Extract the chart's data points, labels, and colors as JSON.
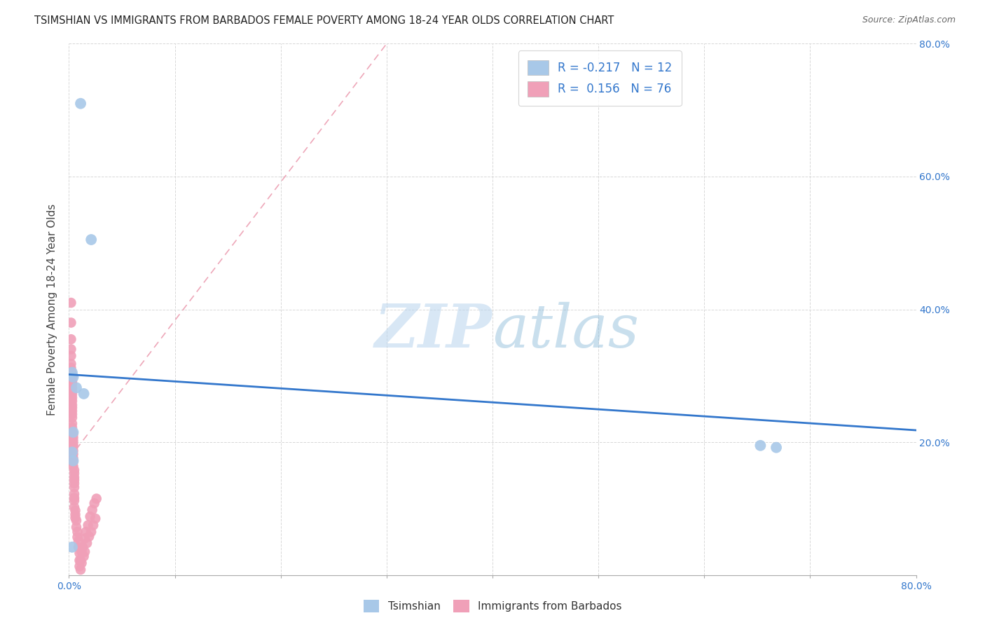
{
  "title": "TSIMSHIAN VS IMMIGRANTS FROM BARBADOS FEMALE POVERTY AMONG 18-24 YEAR OLDS CORRELATION CHART",
  "source": "Source: ZipAtlas.com",
  "ylabel": "Female Poverty Among 18-24 Year Olds",
  "watermark": "ZIPatlas",
  "xlim": [
    0.0,
    0.8
  ],
  "ylim": [
    0.0,
    0.8
  ],
  "x_ticks": [
    0.0,
    0.1,
    0.2,
    0.3,
    0.4,
    0.5,
    0.6,
    0.7,
    0.8
  ],
  "x_tick_labels_show": {
    "0": "0.0%",
    "8": "80.0%"
  },
  "y_ticks_right": [
    0.2,
    0.4,
    0.6,
    0.8
  ],
  "y_tick_labels_right": [
    "20.0%",
    "40.0%",
    "60.0%",
    "80.0%"
  ],
  "tsimshian_color": "#a8c8e8",
  "barbados_color": "#f0a0b8",
  "trend_tsimshian_color": "#3377cc",
  "trend_barbados_color": "#e06080",
  "background_color": "#ffffff",
  "grid_color": "#d8d8d8",
  "tsimshian_R": -0.217,
  "tsimshian_N": 12,
  "barbados_R": 0.156,
  "barbados_N": 76,
  "tsimshian_x": [
    0.011,
    0.021,
    0.003,
    0.004,
    0.007,
    0.014,
    0.004,
    0.003,
    0.004,
    0.653,
    0.668,
    0.003
  ],
  "tsimshian_y": [
    0.71,
    0.505,
    0.305,
    0.298,
    0.282,
    0.273,
    0.215,
    0.185,
    0.172,
    0.195,
    0.192,
    0.042
  ],
  "barbados_x": [
    0.002,
    0.002,
    0.002,
    0.002,
    0.002,
    0.002,
    0.002,
    0.002,
    0.003,
    0.003,
    0.003,
    0.003,
    0.003,
    0.003,
    0.003,
    0.003,
    0.003,
    0.003,
    0.003,
    0.003,
    0.003,
    0.003,
    0.003,
    0.003,
    0.003,
    0.004,
    0.004,
    0.004,
    0.004,
    0.004,
    0.004,
    0.004,
    0.004,
    0.004,
    0.004,
    0.005,
    0.005,
    0.005,
    0.005,
    0.005,
    0.005,
    0.005,
    0.005,
    0.005,
    0.005,
    0.006,
    0.006,
    0.006,
    0.007,
    0.007,
    0.008,
    0.008,
    0.009,
    0.009,
    0.01,
    0.01,
    0.01,
    0.011,
    0.011,
    0.012,
    0.012,
    0.013,
    0.014,
    0.015,
    0.015,
    0.016,
    0.017,
    0.018,
    0.019,
    0.02,
    0.021,
    0.022,
    0.023,
    0.024,
    0.025,
    0.026
  ],
  "barbados_y": [
    0.41,
    0.38,
    0.355,
    0.34,
    0.33,
    0.318,
    0.312,
    0.308,
    0.303,
    0.298,
    0.292,
    0.288,
    0.282,
    0.276,
    0.272,
    0.267,
    0.262,
    0.256,
    0.252,
    0.247,
    0.242,
    0.237,
    0.228,
    0.222,
    0.216,
    0.212,
    0.207,
    0.202,
    0.197,
    0.193,
    0.187,
    0.182,
    0.176,
    0.17,
    0.164,
    0.158,
    0.153,
    0.147,
    0.143,
    0.138,
    0.132,
    0.122,
    0.116,
    0.112,
    0.102,
    0.097,
    0.091,
    0.086,
    0.082,
    0.072,
    0.065,
    0.057,
    0.051,
    0.042,
    0.033,
    0.022,
    0.013,
    0.022,
    0.008,
    0.035,
    0.018,
    0.042,
    0.028,
    0.055,
    0.035,
    0.065,
    0.048,
    0.075,
    0.058,
    0.088,
    0.065,
    0.098,
    0.075,
    0.108,
    0.085,
    0.115
  ],
  "trend_ts_x0": 0.0,
  "trend_ts_y0": 0.302,
  "trend_ts_x1": 0.8,
  "trend_ts_y1": 0.218,
  "trend_bb_x0": 0.0,
  "trend_bb_y0": 0.175,
  "trend_bb_x1": 0.3,
  "trend_bb_y1": 0.8
}
